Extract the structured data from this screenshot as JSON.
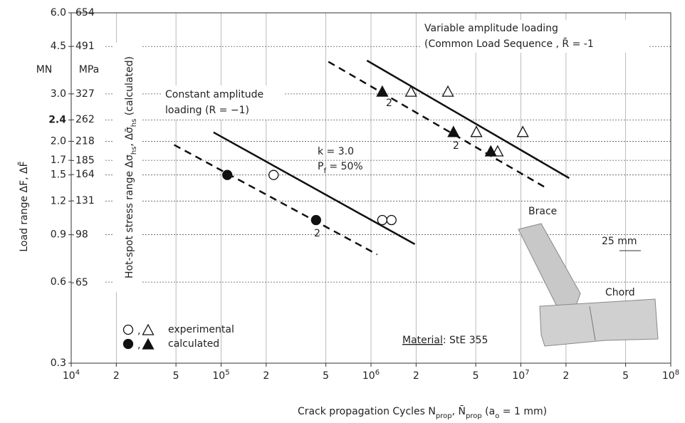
{
  "chart_data": {
    "type": "scatter",
    "log_x": true,
    "log_y": true,
    "grid": true,
    "xlim": [
      10000,
      100000000
    ],
    "ylim": [
      0.3,
      6
    ],
    "y2lim": [
      32.7,
      654
    ],
    "xticks": [
      {
        "value": 10000,
        "label": "10",
        "sup": "4"
      },
      {
        "value": 20000,
        "label": "2"
      },
      {
        "value": 50000,
        "label": "5"
      },
      {
        "value": 100000,
        "label": "10",
        "sup": "5"
      },
      {
        "value": 200000,
        "label": "2"
      },
      {
        "value": 500000,
        "label": "5"
      },
      {
        "value": 1000000,
        "label": "10",
        "sup": "6"
      },
      {
        "value": 2000000,
        "label": "2"
      },
      {
        "value": 5000000,
        "label": "5"
      },
      {
        "value": 10000000,
        "label": "10",
        "sup": "7"
      },
      {
        "value": 20000000,
        "label": "2"
      },
      {
        "value": 50000000,
        "label": "5"
      },
      {
        "value": 100000000,
        "label": "10",
        "sup": "8"
      }
    ],
    "yticks": [
      {
        "value": 6,
        "label": "6.0"
      },
      4.5,
      {
        "value": 3,
        "label": "3.0"
      },
      {
        "value": 2.4,
        "label": "2.4",
        "bold": true
      },
      {
        "value": 2,
        "label": "2.0"
      },
      1.7,
      1.5,
      1.2,
      0.9,
      0.6,
      0.3
    ],
    "y2ticks": [
      654,
      491,
      327,
      262,
      218,
      185,
      164,
      131,
      98,
      65
    ],
    "y_unit": "MN",
    "y2_unit": "MPa",
    "y_label": "Load range ΔF, ΔF̄",
    "y2_label": [
      {
        "t": "Hot-spot stress range Δσ"
      },
      {
        "t": "hs",
        "sub": true
      },
      {
        "t": ", Δσ̄"
      },
      {
        "t": "hs",
        "sub": true
      },
      {
        "t": " (calculated)"
      }
    ],
    "x_label": [
      {
        "t": "Crack propagation Cycles N"
      },
      {
        "t": "prop",
        "sub": true
      },
      {
        "t": ", N̄"
      },
      {
        "t": "prop",
        "sub": true
      },
      {
        "t": " (a"
      },
      {
        "t": "o",
        "sub": true
      },
      {
        "t": " = 1 mm)"
      }
    ],
    "series": [
      {
        "marker": "circle",
        "filled": false,
        "x": [
          224000,
          1190000,
          1370000
        ],
        "y": [
          1.5,
          1.02,
          1.02
        ]
      },
      {
        "marker": "triangle",
        "filled": false,
        "x": [
          1850000,
          3260000,
          5050000,
          7000000,
          10300000
        ],
        "y": [
          3.05,
          3.05,
          2.16,
          1.83,
          2.16
        ]
      },
      {
        "marker": "circle",
        "filled": true,
        "x": [
          110000,
          430000
        ],
        "y": [
          1.5,
          1.02
        ]
      },
      {
        "marker": "triangle",
        "filled": true,
        "x": [
          1190000,
          3550000,
          6300000
        ],
        "y": [
          3.05,
          2.16,
          1.83
        ]
      }
    ],
    "lines": [
      {
        "style": "solid",
        "x": [
          89000,
          1960000
        ],
        "y": [
          2.16,
          0.83
        ]
      },
      {
        "style": "dashed",
        "x": [
          48600,
          1100000
        ],
        "y": [
          1.94,
          0.76
        ]
      },
      {
        "style": "solid",
        "x": [
          940000,
          21000000
        ],
        "y": [
          3.99,
          1.46
        ]
      },
      {
        "style": "dashed",
        "x": [
          520000,
          14500000
        ],
        "y": [
          3.95,
          1.35
        ]
      }
    ],
    "legend": [
      {
        "label": "experimental",
        "filled": false
      },
      {
        "label": "calculated",
        "filled": true
      }
    ],
    "annotations": [
      "Variable amplitude loading",
      "(Common Load Sequence , R̄ = -1",
      "Constant amplitude",
      "loading (R = −1)",
      "k =  3.0",
      "2",
      "2",
      "2",
      "Brace",
      "25 mm",
      "Chord"
    ],
    "p_label": [
      {
        "t": "P"
      },
      {
        "t": "f",
        "sub": true
      },
      {
        "t": " = 50%"
      }
    ],
    "material": [
      {
        "t": "Material",
        "underline": true
      },
      {
        "t": ": StE 355"
      }
    ]
  }
}
